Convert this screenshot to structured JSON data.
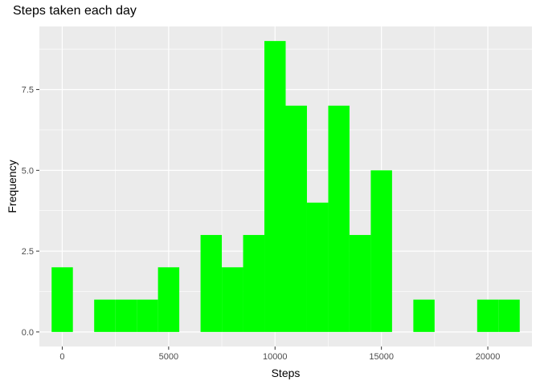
{
  "chart_data": {
    "type": "bar",
    "title": "Steps taken each day",
    "xlabel": "Steps",
    "ylabel": "Frequency",
    "bin_width": 1000,
    "bins": [
      {
        "center": 0,
        "count": 2
      },
      {
        "center": 1000,
        "count": 0
      },
      {
        "center": 2000,
        "count": 1
      },
      {
        "center": 3000,
        "count": 1
      },
      {
        "center": 4000,
        "count": 1
      },
      {
        "center": 5000,
        "count": 2
      },
      {
        "center": 6000,
        "count": 0
      },
      {
        "center": 7000,
        "count": 3
      },
      {
        "center": 8000,
        "count": 2
      },
      {
        "center": 9000,
        "count": 3
      },
      {
        "center": 10000,
        "count": 9
      },
      {
        "center": 11000,
        "count": 7
      },
      {
        "center": 12000,
        "count": 4
      },
      {
        "center": 13000,
        "count": 7
      },
      {
        "center": 14000,
        "count": 3
      },
      {
        "center": 15000,
        "count": 5
      },
      {
        "center": 16000,
        "count": 0
      },
      {
        "center": 17000,
        "count": 1
      },
      {
        "center": 18000,
        "count": 0
      },
      {
        "center": 19000,
        "count": 0
      },
      {
        "center": 20000,
        "count": 1
      },
      {
        "center": 21000,
        "count": 1
      }
    ],
    "xlim": [
      -1075,
      22075
    ],
    "ylim": [
      -0.45,
      9.45
    ],
    "x_ticks": [
      0,
      5000,
      10000,
      15000,
      20000
    ],
    "y_ticks": [
      0.0,
      2.5,
      5.0,
      7.5
    ],
    "x_tick_labels": [
      "0",
      "5000",
      "10000",
      "15000",
      "20000"
    ],
    "y_tick_labels": [
      "0.0",
      "2.5",
      "5.0",
      "7.5"
    ],
    "bar_color": "#00ff00",
    "panel_color": "#ebebeb",
    "grid": true,
    "legend": "none"
  }
}
